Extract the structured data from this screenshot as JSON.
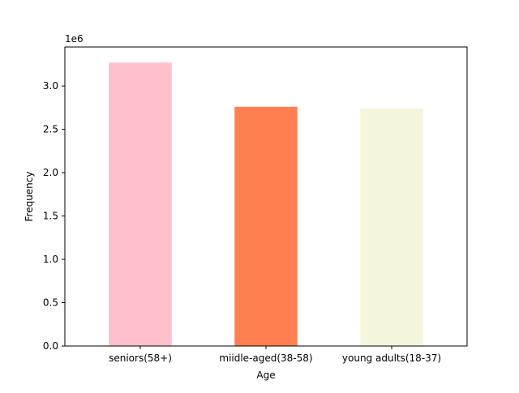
{
  "chart_data": {
    "type": "bar",
    "categories": [
      "seniors(58+)",
      "miidle-aged(38-58)",
      "young adults(18-37)"
    ],
    "values": [
      3270000,
      2760000,
      2740000
    ],
    "colors": [
      "#ffc0cb",
      "#ff7f50",
      "#f5f5dc"
    ],
    "xlabel": "Age",
    "ylabel": "Frequency",
    "ylim": [
      0,
      3450000
    ],
    "yticks": [
      0,
      500000,
      1000000,
      1500000,
      2000000,
      2500000,
      3000000
    ],
    "ytick_labels": [
      "0.0",
      "0.5",
      "1.0",
      "1.5",
      "2.0",
      "2.5",
      "3.0"
    ],
    "offset_label": "1e6",
    "grid": false
  }
}
